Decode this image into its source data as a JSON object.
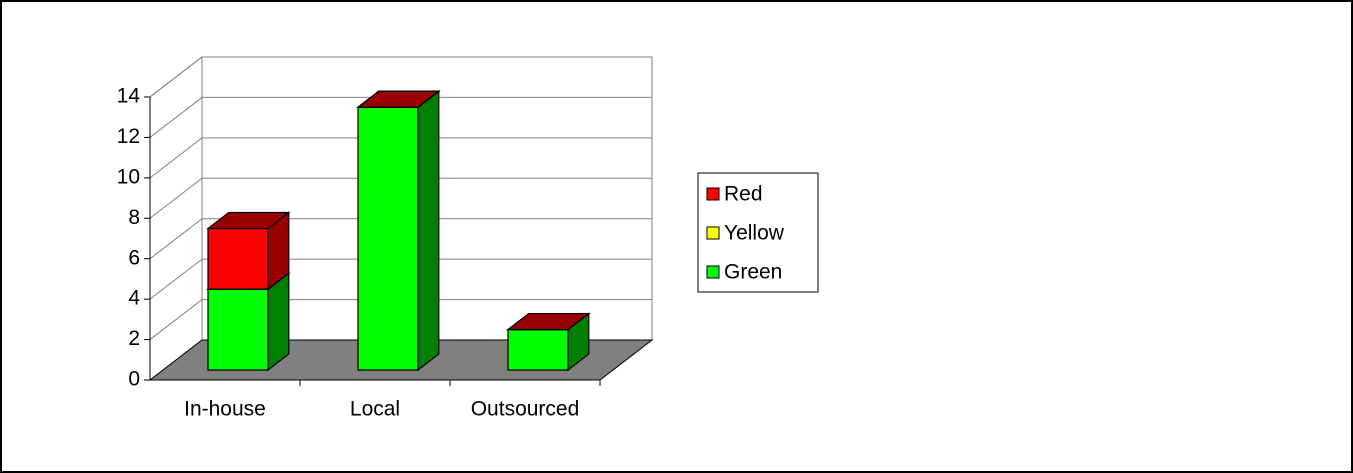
{
  "chart_data": {
    "type": "bar3d_stacked",
    "categories": [
      "In-house",
      "Local",
      "Outsourced"
    ],
    "series": [
      {
        "name": "Green",
        "color": "#00ff00",
        "side": "#008000",
        "values": [
          4,
          13,
          2
        ]
      },
      {
        "name": "Yellow",
        "color": "#ffff00",
        "side": "#999900",
        "values": [
          0,
          0,
          0
        ]
      },
      {
        "name": "Red",
        "color": "#ff0000",
        "side": "#990000",
        "values": [
          3,
          0,
          0
        ]
      }
    ],
    "ylim": [
      0,
      14
    ],
    "yticks": [
      0,
      2,
      4,
      6,
      8,
      10,
      12,
      14
    ],
    "grid": true,
    "legend": "right"
  }
}
